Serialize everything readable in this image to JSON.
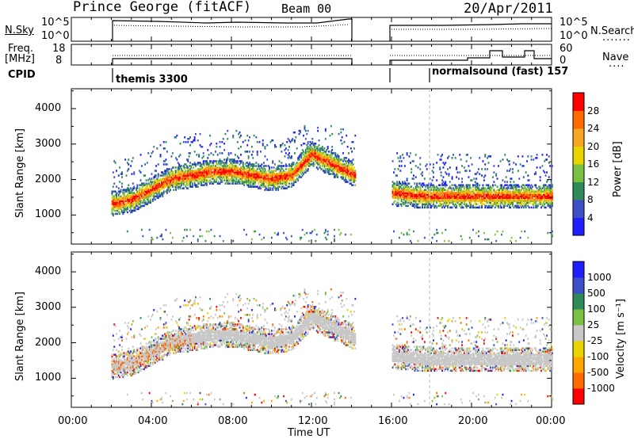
{
  "header": {
    "station": "Prince George (fitACF)",
    "beam": "Beam 00",
    "date": "20/Apr/2011"
  },
  "params": {
    "left_labels": [
      "N.Sky",
      "Freq.",
      "[MHz]",
      "CPID"
    ],
    "right_labels": [
      "N.Search",
      "Nave"
    ],
    "sky_ticks": [
      "10^5",
      "10^0"
    ],
    "freq_ticks": [
      "18",
      "8"
    ],
    "nave_ticks": [
      "60",
      "0"
    ],
    "search_ticks": [
      "10^5",
      "10^0"
    ],
    "cpid_labels": [
      "themis 3300",
      "normalsound (fast) 157"
    ]
  },
  "colors": {
    "power": [
      "#1e1eff",
      "#3c4ec8",
      "#2e8b57",
      "#7ac143",
      "#e8d400",
      "#f5a623",
      "#ff6a00",
      "#ff0000"
    ],
    "velocity": [
      "#ff0000",
      "#ff6a00",
      "#ffa500",
      "#e8d400",
      "#c8c8c8",
      "#7ac143",
      "#2e8b57",
      "#3c4ec8",
      "#1e1eff"
    ],
    "ground_scatter": "#c8c8c8"
  },
  "chart_data": [
    {
      "type": "heatmap",
      "xlabel": "",
      "ylabel": "Slant Range [km]",
      "xlim": [
        0,
        24
      ],
      "ylim": [
        180,
        4560
      ],
      "ytick_labels": [
        "1000",
        "2000",
        "3000",
        "4000"
      ],
      "colorbar": {
        "label": "Power [dB]",
        "tick_labels": [
          "4",
          "8",
          "12",
          "16",
          "20",
          "24",
          "28"
        ]
      },
      "data_segments_hours": [
        [
          2.0,
          14.2
        ],
        [
          16.0,
          24.0
        ]
      ],
      "scatter_band_range_km": [
        [
          2.0,
          1300
        ],
        [
          3.0,
          1400
        ],
        [
          4.0,
          1700
        ],
        [
          5.0,
          2000
        ],
        [
          6.0,
          2100
        ],
        [
          7.0,
          2200
        ],
        [
          8.0,
          2200
        ],
        [
          9.0,
          2100
        ],
        [
          10.0,
          2000
        ],
        [
          11.0,
          2100
        ],
        [
          12.0,
          2700
        ],
        [
          16.0,
          1600
        ],
        [
          18.0,
          1500
        ],
        [
          20.0,
          1500
        ],
        [
          22.0,
          1500
        ],
        [
          24.0,
          1500
        ]
      ]
    },
    {
      "type": "heatmap",
      "xlabel": "Time UT",
      "ylabel": "Slant Range [km]",
      "xlim": [
        0,
        24
      ],
      "ylim": [
        180,
        4560
      ],
      "ytick_labels": [
        "1000",
        "2000",
        "3000",
        "4000"
      ],
      "xtick_labels": [
        "00:00",
        "04:00",
        "08:00",
        "12:00",
        "16:00",
        "20:00",
        "00:00"
      ],
      "colorbar": {
        "label": "Velocity [m s⁻¹]",
        "tick_labels": [
          "1000",
          "500",
          "100",
          "25",
          "-25",
          "-100",
          "-500",
          "-1000"
        ]
      }
    }
  ]
}
